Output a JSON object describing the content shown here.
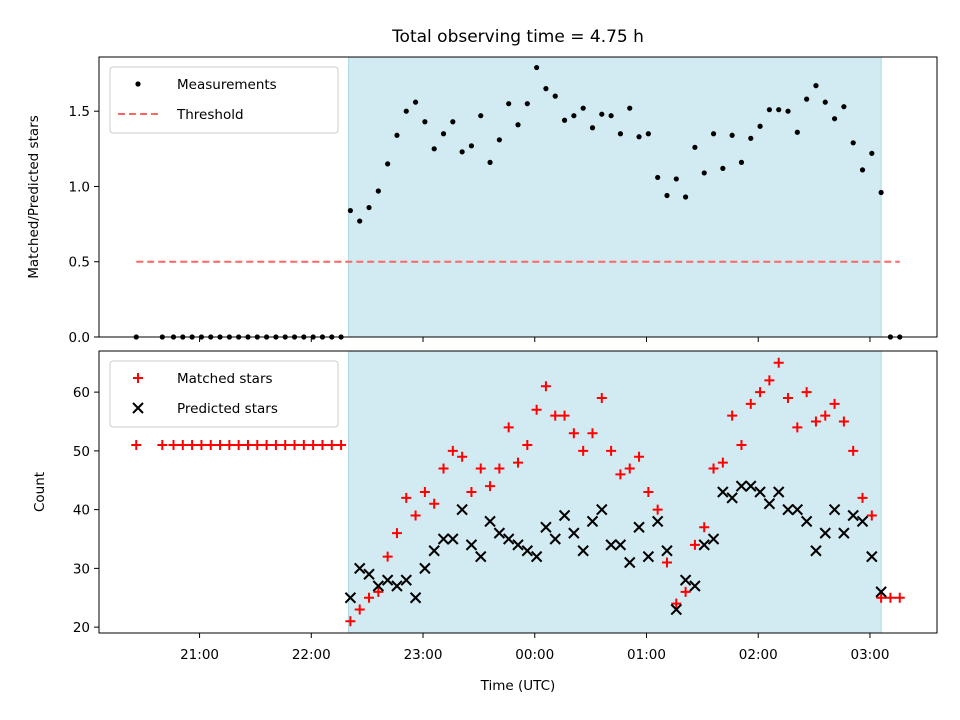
{
  "figure": {
    "title": "Total observing time = 4.75 h",
    "xlabel": "Time (UTC)"
  },
  "colors": {
    "shade": "#add8e6",
    "threshold": "#ff6666",
    "measurements": "#000000",
    "matched": "#ff0000",
    "predicted": "#000000"
  },
  "chart_data": [
    {
      "type": "scatter",
      "ylabel": "Matched/Predicted stars",
      "ylim": [
        0,
        1.86
      ],
      "yticks": [
        "0.0",
        "0.5",
        "1.0",
        "1.5"
      ],
      "xlim": [
        "20:06",
        "03:36"
      ],
      "xticks": [
        "21:00",
        "22:00",
        "23:00",
        "00:00",
        "01:00",
        "02:00",
        "03:00"
      ],
      "xticklabels_shown": false,
      "legend": "top-left",
      "shaded_interval": [
        "22:20",
        "03:06"
      ],
      "series": [
        {
          "name": "Measurements",
          "marker": "dot",
          "points": [
            [
              "20:26",
              0
            ],
            [
              "20:40",
              0
            ],
            [
              "20:46",
              0
            ],
            [
              "20:51",
              0
            ],
            [
              "20:56",
              0
            ],
            [
              "21:01",
              0
            ],
            [
              "21:06",
              0
            ],
            [
              "21:11",
              0
            ],
            [
              "21:16",
              0
            ],
            [
              "21:21",
              0
            ],
            [
              "21:26",
              0
            ],
            [
              "21:31",
              0
            ],
            [
              "21:36",
              0
            ],
            [
              "21:41",
              0
            ],
            [
              "21:46",
              0
            ],
            [
              "21:51",
              0
            ],
            [
              "21:56",
              0
            ],
            [
              "22:01",
              0
            ],
            [
              "22:06",
              0
            ],
            [
              "22:11",
              0
            ],
            [
              "22:16",
              0
            ],
            [
              "22:21",
              0.84
            ],
            [
              "22:26",
              0.77
            ],
            [
              "22:31",
              0.86
            ],
            [
              "22:36",
              0.97
            ],
            [
              "22:41",
              1.15
            ],
            [
              "22:46",
              1.34
            ],
            [
              "22:51",
              1.5
            ],
            [
              "22:56",
              1.56
            ],
            [
              "23:01",
              1.43
            ],
            [
              "23:06",
              1.25
            ],
            [
              "23:11",
              1.35
            ],
            [
              "23:16",
              1.43
            ],
            [
              "23:21",
              1.23
            ],
            [
              "23:26",
              1.27
            ],
            [
              "23:31",
              1.47
            ],
            [
              "23:36",
              1.16
            ],
            [
              "23:41",
              1.31
            ],
            [
              "23:46",
              1.55
            ],
            [
              "23:51",
              1.41
            ],
            [
              "23:56",
              1.55
            ],
            [
              "00:01",
              1.79
            ],
            [
              "00:06",
              1.65
            ],
            [
              "00:11",
              1.6
            ],
            [
              "00:16",
              1.44
            ],
            [
              "00:21",
              1.47
            ],
            [
              "00:26",
              1.52
            ],
            [
              "00:31",
              1.39
            ],
            [
              "00:36",
              1.48
            ],
            [
              "00:41",
              1.47
            ],
            [
              "00:46",
              1.35
            ],
            [
              "00:51",
              1.52
            ],
            [
              "00:56",
              1.33
            ],
            [
              "01:01",
              1.35
            ],
            [
              "01:06",
              1.06
            ],
            [
              "01:11",
              0.94
            ],
            [
              "01:16",
              1.05
            ],
            [
              "01:21",
              0.93
            ],
            [
              "01:26",
              1.26
            ],
            [
              "01:31",
              1.09
            ],
            [
              "01:36",
              1.35
            ],
            [
              "01:41",
              1.12
            ],
            [
              "01:46",
              1.34
            ],
            [
              "01:51",
              1.16
            ],
            [
              "01:56",
              1.32
            ],
            [
              "02:01",
              1.4
            ],
            [
              "02:06",
              1.51
            ],
            [
              "02:11",
              1.51
            ],
            [
              "02:16",
              1.5
            ],
            [
              "02:21",
              1.36
            ],
            [
              "02:26",
              1.58
            ],
            [
              "02:31",
              1.67
            ],
            [
              "02:36",
              1.56
            ],
            [
              "02:41",
              1.45
            ],
            [
              "02:46",
              1.53
            ],
            [
              "02:51",
              1.29
            ],
            [
              "02:56",
              1.11
            ],
            [
              "03:01",
              1.22
            ],
            [
              "03:06",
              0.96
            ],
            [
              "03:11",
              0
            ],
            [
              "03:16",
              0
            ]
          ]
        },
        {
          "name": "Threshold",
          "type": "line",
          "dash": true,
          "points": [
            [
              "20:26",
              0.5
            ],
            [
              "03:16",
              0.5
            ]
          ]
        }
      ]
    },
    {
      "type": "scatter",
      "ylabel": "Count",
      "ylim": [
        19,
        67
      ],
      "yticks": [
        "20",
        "30",
        "40",
        "50",
        "60"
      ],
      "xlim": [
        "20:06",
        "03:36"
      ],
      "xticks": [
        "21:00",
        "22:00",
        "23:00",
        "00:00",
        "01:00",
        "02:00",
        "03:00"
      ],
      "legend": "top-left",
      "shaded_interval": [
        "22:20",
        "03:06"
      ],
      "series": [
        {
          "name": "Matched stars",
          "marker": "plus",
          "points": [
            [
              "20:26",
              51
            ],
            [
              "20:40",
              51
            ],
            [
              "20:46",
              51
            ],
            [
              "20:51",
              51
            ],
            [
              "20:56",
              51
            ],
            [
              "21:01",
              51
            ],
            [
              "21:06",
              51
            ],
            [
              "21:11",
              51
            ],
            [
              "21:16",
              51
            ],
            [
              "21:21",
              51
            ],
            [
              "21:26",
              51
            ],
            [
              "21:31",
              51
            ],
            [
              "21:36",
              51
            ],
            [
              "21:41",
              51
            ],
            [
              "21:46",
              51
            ],
            [
              "21:51",
              51
            ],
            [
              "21:56",
              51
            ],
            [
              "22:01",
              51
            ],
            [
              "22:06",
              51
            ],
            [
              "22:11",
              51
            ],
            [
              "22:16",
              51
            ],
            [
              "22:21",
              21
            ],
            [
              "22:26",
              23
            ],
            [
              "22:31",
              25
            ],
            [
              "22:36",
              26
            ],
            [
              "22:41",
              32
            ],
            [
              "22:46",
              36
            ],
            [
              "22:51",
              42
            ],
            [
              "22:56",
              39
            ],
            [
              "23:01",
              43
            ],
            [
              "23:06",
              41
            ],
            [
              "23:11",
              47
            ],
            [
              "23:16",
              50
            ],
            [
              "23:21",
              49
            ],
            [
              "23:26",
              43
            ],
            [
              "23:31",
              47
            ],
            [
              "23:36",
              44
            ],
            [
              "23:41",
              47
            ],
            [
              "23:46",
              54
            ],
            [
              "23:51",
              48
            ],
            [
              "23:56",
              51
            ],
            [
              "00:01",
              57
            ],
            [
              "00:06",
              61
            ],
            [
              "00:11",
              56
            ],
            [
              "00:16",
              56
            ],
            [
              "00:21",
              53
            ],
            [
              "00:26",
              50
            ],
            [
              "00:31",
              53
            ],
            [
              "00:36",
              59
            ],
            [
              "00:41",
              50
            ],
            [
              "00:46",
              46
            ],
            [
              "00:51",
              47
            ],
            [
              "00:56",
              49
            ],
            [
              "01:01",
              43
            ],
            [
              "01:06",
              40
            ],
            [
              "01:11",
              31
            ],
            [
              "01:16",
              24
            ],
            [
              "01:21",
              26
            ],
            [
              "01:26",
              34
            ],
            [
              "01:31",
              37
            ],
            [
              "01:36",
              47
            ],
            [
              "01:41",
              48
            ],
            [
              "01:46",
              56
            ],
            [
              "01:51",
              51
            ],
            [
              "01:56",
              58
            ],
            [
              "02:01",
              60
            ],
            [
              "02:06",
              62
            ],
            [
              "02:11",
              65
            ],
            [
              "02:16",
              59
            ],
            [
              "02:21",
              54
            ],
            [
              "02:26",
              60
            ],
            [
              "02:31",
              55
            ],
            [
              "02:36",
              56
            ],
            [
              "02:41",
              58
            ],
            [
              "02:46",
              55
            ],
            [
              "02:51",
              50
            ],
            [
              "02:56",
              42
            ],
            [
              "03:01",
              39
            ],
            [
              "03:06",
              25
            ],
            [
              "03:11",
              25
            ],
            [
              "03:16",
              25
            ]
          ]
        },
        {
          "name": "Predicted stars",
          "marker": "x",
          "points": [
            [
              "22:21",
              25
            ],
            [
              "22:26",
              30
            ],
            [
              "22:31",
              29
            ],
            [
              "22:36",
              27
            ],
            [
              "22:41",
              28
            ],
            [
              "22:46",
              27
            ],
            [
              "22:51",
              28
            ],
            [
              "22:56",
              25
            ],
            [
              "23:01",
              30
            ],
            [
              "23:06",
              33
            ],
            [
              "23:11",
              35
            ],
            [
              "23:16",
              35
            ],
            [
              "23:21",
              40
            ],
            [
              "23:26",
              34
            ],
            [
              "23:31",
              32
            ],
            [
              "23:36",
              38
            ],
            [
              "23:41",
              36
            ],
            [
              "23:46",
              35
            ],
            [
              "23:51",
              34
            ],
            [
              "23:56",
              33
            ],
            [
              "00:01",
              32
            ],
            [
              "00:06",
              37
            ],
            [
              "00:11",
              35
            ],
            [
              "00:16",
              39
            ],
            [
              "00:21",
              36
            ],
            [
              "00:26",
              33
            ],
            [
              "00:31",
              38
            ],
            [
              "00:36",
              40
            ],
            [
              "00:41",
              34
            ],
            [
              "00:46",
              34
            ],
            [
              "00:51",
              31
            ],
            [
              "00:56",
              37
            ],
            [
              "01:01",
              32
            ],
            [
              "01:06",
              38
            ],
            [
              "01:11",
              33
            ],
            [
              "01:16",
              23
            ],
            [
              "01:21",
              28
            ],
            [
              "01:26",
              27
            ],
            [
              "01:31",
              34
            ],
            [
              "01:36",
              35
            ],
            [
              "01:41",
              43
            ],
            [
              "01:46",
              42
            ],
            [
              "01:51",
              44
            ],
            [
              "01:56",
              44
            ],
            [
              "02:01",
              43
            ],
            [
              "02:06",
              41
            ],
            [
              "02:11",
              43
            ],
            [
              "02:16",
              40
            ],
            [
              "02:21",
              40
            ],
            [
              "02:26",
              38
            ],
            [
              "02:31",
              33
            ],
            [
              "02:36",
              36
            ],
            [
              "02:41",
              40
            ],
            [
              "02:46",
              36
            ],
            [
              "02:51",
              39
            ],
            [
              "02:56",
              38
            ],
            [
              "03:01",
              32
            ],
            [
              "03:06",
              26
            ]
          ]
        }
      ]
    }
  ]
}
